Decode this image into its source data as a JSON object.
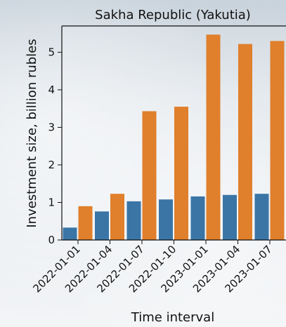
{
  "chart_data": {
    "type": "bar",
    "title": "Sakha Republic (Yakutia)",
    "xlabel": "Time interval",
    "ylabel": "Investment size, billion rubles",
    "categories": [
      "2022-01-01",
      "2022-01-04",
      "2022-01-07",
      "2022-01-10",
      "2023-01-01",
      "2023-01-04",
      "2023-01-07"
    ],
    "series": [
      {
        "color": "#3a75a6",
        "values": [
          0.33,
          0.76,
          1.03,
          1.08,
          1.16,
          1.2,
          1.23
        ]
      },
      {
        "color": "#e07f2c",
        "values": [
          0.9,
          1.23,
          3.43,
          3.55,
          5.47,
          5.22,
          5.3
        ]
      }
    ],
    "yticks": [
      0,
      1,
      2,
      3,
      4,
      5
    ],
    "ylim": [
      0,
      5.7
    ],
    "grid": false,
    "legend": "none"
  }
}
